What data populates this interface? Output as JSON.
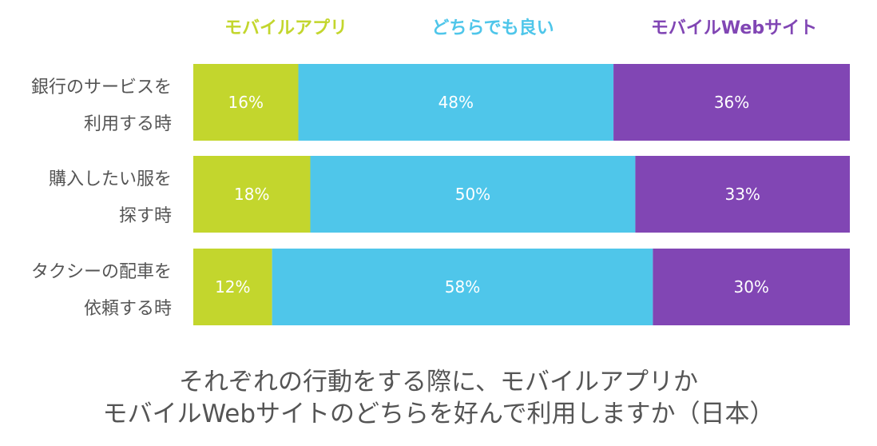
{
  "chart_data": {
    "type": "bar",
    "orientation": "horizontal",
    "stacked": true,
    "categories": [
      [
        "銀行のサービスを",
        "利用する時"
      ],
      [
        "購入したい服を",
        "探す時"
      ],
      [
        "タクシーの配車を",
        "依頼する時"
      ]
    ],
    "series": [
      {
        "name": "モバイルアプリ",
        "color": "#c3d62d",
        "values": [
          16,
          18,
          12
        ],
        "labels": [
          "16%",
          "18%",
          "12%"
        ]
      },
      {
        "name": "どちらでも良い",
        "color": "#4fc6ea",
        "values": [
          48,
          50,
          58
        ],
        "labels": [
          "48%",
          "50%",
          "58%"
        ]
      },
      {
        "name": "モバイルWebサイト",
        "color": "#8146b4",
        "values": [
          36,
          33,
          30
        ],
        "labels": [
          "36%",
          "33%",
          "30%"
        ]
      }
    ],
    "legend": "top",
    "grid": false
  },
  "caption": {
    "line1": "それぞれの行動をする際に、モバイルアプリか",
    "line2": "モバイルWebサイトのどちらを好んで利用しますか（日本）"
  }
}
